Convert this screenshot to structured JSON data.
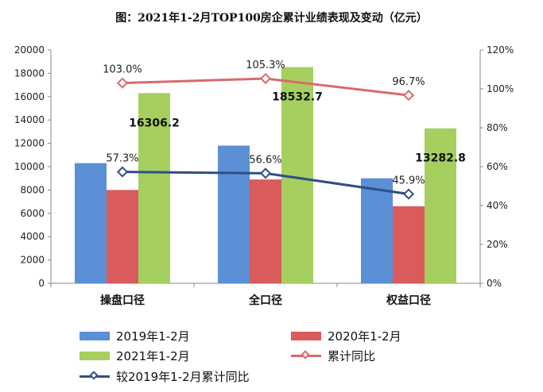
{
  "title": "图：2021年1-2月TOP100房企累计业绩表现及变动（亿元）",
  "chart_data": {
    "type": "bar",
    "categories": [
      "操盘口径",
      "全口径",
      "权益口径"
    ],
    "series": [
      {
        "name": "2019年1-2月",
        "type": "bar",
        "axis": "left",
        "color": "#5b8fd6",
        "values": [
          10300,
          11800,
          9000
        ]
      },
      {
        "name": "2020年1-2月",
        "type": "bar",
        "axis": "left",
        "color": "#d95b5b",
        "values": [
          8000,
          8900,
          6600
        ]
      },
      {
        "name": "2021年1-2月",
        "type": "bar",
        "axis": "left",
        "color": "#a6cf5f",
        "values": [
          16306.2,
          18532.7,
          13282.8
        ],
        "labels": [
          "16306.2",
          "18532.7",
          "13282.8"
        ]
      },
      {
        "name": "累计同比",
        "type": "line",
        "axis": "right",
        "color": "#d96a6a",
        "values": [
          103.0,
          105.3,
          96.7
        ],
        "labels": [
          "103.0%",
          "105.3%",
          "96.7%"
        ]
      },
      {
        "name": "较2019年1-2月累计同比",
        "type": "line",
        "axis": "right",
        "color": "#2e4f86",
        "values": [
          57.3,
          56.6,
          45.9
        ],
        "labels": [
          "57.3%",
          "56.6%",
          "45.9%"
        ]
      }
    ],
    "y_left": {
      "min": 0,
      "max": 20000,
      "step": 2000,
      "ticks": [
        "0",
        "2000",
        "4000",
        "6000",
        "8000",
        "10000",
        "12000",
        "14000",
        "16000",
        "18000",
        "20000"
      ]
    },
    "y_right": {
      "min": 0,
      "max": 120,
      "step": 20,
      "ticks": [
        "0%",
        "20%",
        "40%",
        "60%",
        "80%",
        "100%",
        "120%"
      ]
    },
    "grid": false,
    "legend_position": "bottom"
  }
}
